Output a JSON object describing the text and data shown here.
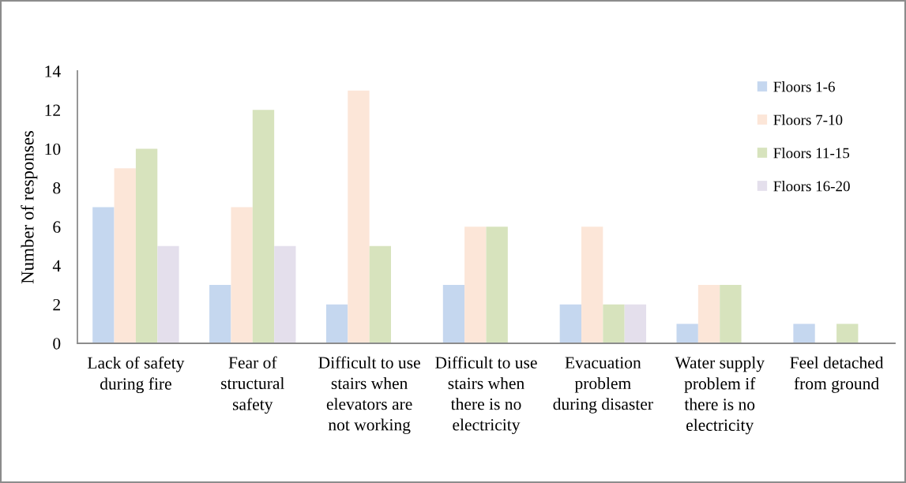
{
  "chart_data": {
    "type": "bar",
    "ylabel": "Number of responses",
    "categories": [
      "Lack of safety\nduring fire",
      "Fear of\nstructural\nsafety",
      "Difficult to use\nstairs when\nelevators are\nnot working",
      "Difficult to use\nstairs when\nthere is no\nelectricity",
      "Evacuation\nproblem\nduring disaster",
      "Water supply\nproblem if\nthere is no\nelectricity",
      "Feel detached\nfrom ground"
    ],
    "series": [
      {
        "name": "Floors 1-6",
        "color": "#c5d7ef",
        "values": [
          7,
          3,
          2,
          3,
          2,
          1,
          1
        ]
      },
      {
        "name": "Floors 7-10",
        "color": "#fce6d8",
        "values": [
          9,
          7,
          13,
          6,
          6,
          3,
          null
        ]
      },
      {
        "name": "Floors 11-15",
        "color": "#d7e3bd",
        "values": [
          10,
          12,
          5,
          6,
          2,
          3,
          1
        ]
      },
      {
        "name": "Floors 16-20",
        "color": "#e4dfec",
        "values": [
          5,
          5,
          null,
          null,
          2,
          null,
          null
        ]
      }
    ],
    "ylim": [
      0,
      14
    ],
    "yticks": [
      0,
      2,
      4,
      6,
      8,
      10,
      12,
      14
    ],
    "grid": false,
    "legend": "top right"
  }
}
